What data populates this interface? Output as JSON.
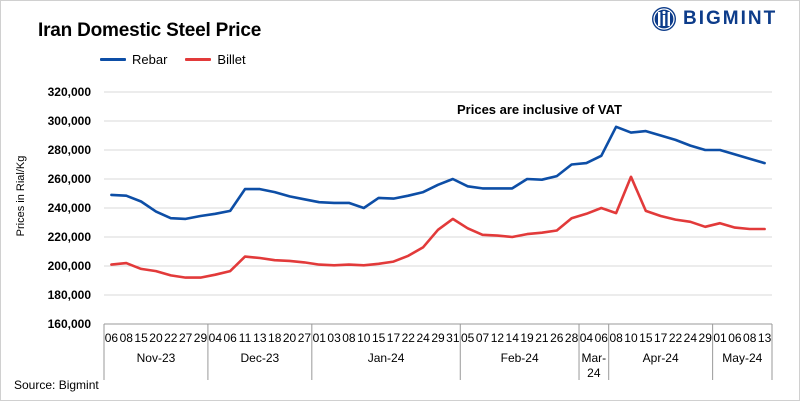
{
  "header": {
    "title": "Iran Domestic Steel Price",
    "brand": "BIGMINT"
  },
  "footer": {
    "source": "Source: Bigmint"
  },
  "colors": {
    "rebar": "#0d4ea6",
    "billet": "#e23a3a",
    "brand": "#0d3c8a"
  },
  "chart_data": {
    "type": "line",
    "title": "Iran Domestic Steel Price",
    "ylabel": "Prices in Rial/Kg",
    "xlabel": "",
    "ylim": [
      160000,
      320000
    ],
    "yticks": [
      160000,
      180000,
      200000,
      220000,
      240000,
      260000,
      280000,
      300000,
      320000
    ],
    "ytick_labels": [
      "160,000",
      "180,000",
      "200,000",
      "220,000",
      "240,000",
      "260,000",
      "280,000",
      "300,000",
      "320,000"
    ],
    "grid": "horizontal",
    "legend": "top-left",
    "annotation": "Prices are inclusive  of VAT",
    "x_tick_labels": [
      "06",
      "08",
      "15",
      "20",
      "22",
      "27",
      "29",
      "04",
      "06",
      "11",
      "13",
      "18",
      "20",
      "27",
      "01",
      "03",
      "08",
      "10",
      "15",
      "17",
      "22",
      "24",
      "29",
      "31",
      "05",
      "07",
      "12",
      "14",
      "19",
      "21",
      "26",
      "28",
      "04",
      "06",
      "08",
      "10",
      "15",
      "17",
      "22",
      "24",
      "29",
      "01",
      "06",
      "08",
      "13"
    ],
    "months": [
      {
        "label": "Nov-23",
        "count": 7
      },
      {
        "label": "Dec-23",
        "count": 7
      },
      {
        "label": "Jan-24",
        "count": 10
      },
      {
        "label": "Feb-24",
        "count": 8
      },
      {
        "label": "Mar-24",
        "count": 2
      },
      {
        "label": "Apr-24",
        "count": 7
      },
      {
        "label": "May-24",
        "count": 4
      }
    ],
    "series": [
      {
        "name": "Rebar",
        "color": "#0d4ea6",
        "values": [
          249000,
          248500,
          244500,
          237500,
          233000,
          232500,
          234500,
          236000,
          238000,
          253000,
          253000,
          251000,
          248000,
          246000,
          244000,
          243500,
          243500,
          240000,
          247000,
          246500,
          248500,
          251000,
          256000,
          260000,
          255000,
          253500,
          253500,
          253500,
          260000,
          259500,
          262000,
          270000,
          271000,
          276000,
          296000,
          292000,
          293000,
          290000,
          287000,
          283000,
          280000,
          280000,
          277000,
          274000,
          271000
        ]
      },
      {
        "name": "Billet",
        "color": "#e23a3a",
        "values": [
          201000,
          202000,
          198000,
          196500,
          193500,
          192000,
          192000,
          194000,
          196500,
          206500,
          205500,
          204000,
          203500,
          202500,
          201000,
          200500,
          201000,
          200500,
          201500,
          203000,
          207000,
          213000,
          225000,
          232500,
          226000,
          221500,
          221000,
          220000,
          222000,
          223000,
          224500,
          233000,
          236000,
          240000,
          236500,
          261500,
          238000,
          234500,
          232000,
          230500,
          227000,
          229500,
          226500,
          225500,
          225500
        ]
      }
    ]
  }
}
